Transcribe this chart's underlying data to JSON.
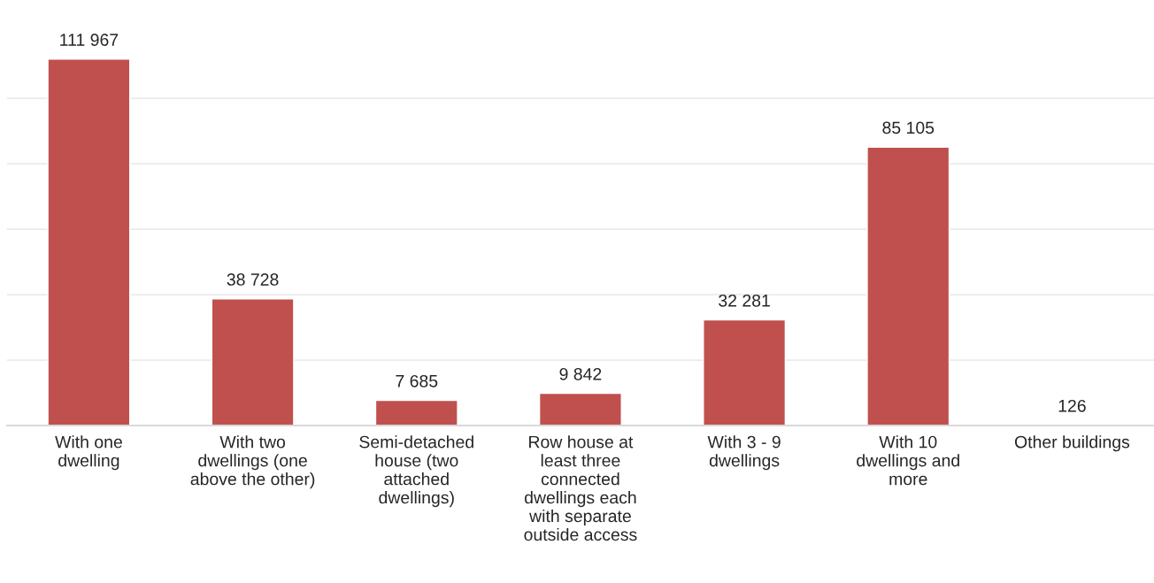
{
  "chart_data": {
    "type": "bar",
    "categories": [
      "With one\ndwelling",
      "With two\ndwellings (one\nabove the other)",
      "Semi-detached\nhouse (two\nattached\ndwellings)",
      "Row house at\nleast three\nconnected\ndwellings each\nwith separate\noutside access",
      "With 3 - 9\ndwellings",
      "With 10\ndwellings and\nmore",
      "Other buildings"
    ],
    "values": [
      111967,
      38728,
      7685,
      9842,
      32281,
      85105,
      126
    ],
    "value_labels": [
      "111 967",
      "38 728",
      "7 685",
      "9 842",
      "32 281",
      "85 105",
      "126"
    ],
    "color": "#c0504d",
    "yticks": [
      {
        "value": 0,
        "label": null
      },
      {
        "value": 20000,
        "label": null
      },
      {
        "value": 40000,
        "label": null
      },
      {
        "value": 60000,
        "label": null
      },
      {
        "value": 80000,
        "label": null
      },
      {
        "value": 100000,
        "label": null
      }
    ],
    "grid": "y",
    "tick_labels": "x"
  }
}
